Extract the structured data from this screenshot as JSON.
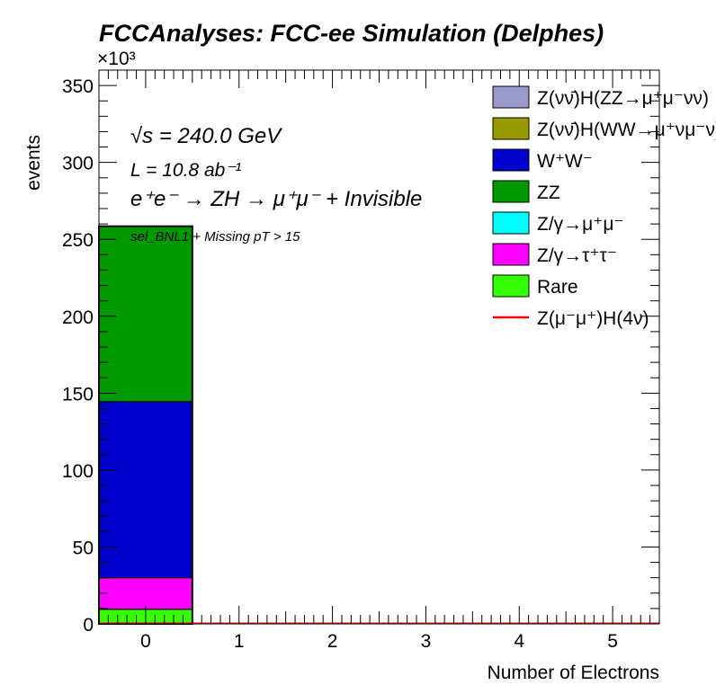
{
  "title": "FCCAnalyses: FCC-ee Simulation (Delphes)",
  "chart_data": {
    "type": "bar",
    "stacked": true,
    "xlabel": "Number of Electrons",
    "ylabel": "events",
    "y_multiplier_label": "×10³",
    "xlim": [
      -0.5,
      5.5
    ],
    "ylim": [
      0,
      360
    ],
    "y_unit": "×10^3 events",
    "x_ticks": [
      0,
      1,
      2,
      3,
      4,
      5
    ],
    "y_ticks": [
      0,
      50,
      100,
      150,
      200,
      250,
      300,
      350
    ],
    "bins": [
      0,
      1,
      2,
      3,
      4,
      5
    ],
    "series": [
      {
        "name": "Rare",
        "color": "#33ff00",
        "values": [
          9.5,
          0,
          0,
          0,
          0,
          0
        ]
      },
      {
        "name": "Z/γ→τ⁺τ⁻",
        "color": "#ff00ff",
        "values": [
          20.5,
          0,
          0,
          0,
          0,
          0
        ]
      },
      {
        "name": "Z/γ→μ⁺μ⁻",
        "color": "#00ffff",
        "values": [
          0,
          0,
          0,
          0,
          0,
          0
        ]
      },
      {
        "name": "W⁺W⁻",
        "color": "#0000cc",
        "values": [
          114.5,
          0,
          0,
          0,
          0,
          0
        ]
      },
      {
        "name": "ZZ",
        "color": "#009900",
        "values": [
          114,
          0,
          0,
          0,
          0,
          0
        ]
      },
      {
        "name": "Z(νν̄)H(WW→μ⁺νμ⁻ν)",
        "color": "#999900",
        "values": [
          0,
          0,
          0,
          0,
          0,
          0
        ]
      },
      {
        "name": "Z(νν̄)H(ZZ→μ⁺μ⁻νν)",
        "color": "#9999cc",
        "values": [
          0,
          0,
          0,
          0,
          0,
          0
        ]
      }
    ],
    "signal": {
      "name": "Z(μ⁻μ⁺)H(4ν)",
      "color": "#ff0000",
      "values": [
        0.3,
        0.3,
        0.3,
        0.3,
        0.3,
        0.3
      ]
    },
    "legend": [
      {
        "label": "Z(νν̄)H(ZZ→μ⁺μ⁻νν)",
        "color": "#9999cc",
        "kind": "box"
      },
      {
        "label": "Z(νν̄)H(WW→μ⁺νμ⁻ν)",
        "color": "#999900",
        "kind": "box"
      },
      {
        "label": "W⁺W⁻",
        "color": "#0000cc",
        "kind": "box"
      },
      {
        "label": "ZZ",
        "color": "#009900",
        "kind": "box"
      },
      {
        "label": "Z/γ→μ⁺μ⁻",
        "color": "#00ffff",
        "kind": "box"
      },
      {
        "label": "Z/γ→τ⁺τ⁻",
        "color": "#ff00ff",
        "kind": "box"
      },
      {
        "label": "Rare",
        "color": "#33ff00",
        "kind": "box"
      },
      {
        "label": "Z(μ⁻μ⁺)H(4ν)",
        "color": "#ff0000",
        "kind": "line"
      }
    ],
    "legend_placement": "top-right",
    "annotations": {
      "sqrt_s": "√s = 240.0 GeV",
      "lumi": "L = 10.8 ab⁻¹",
      "process": "e⁺e⁻ → ZH → μ⁺μ⁻ + Invisible",
      "selection": "sel_BNL1 + Missing pT > 15"
    }
  }
}
